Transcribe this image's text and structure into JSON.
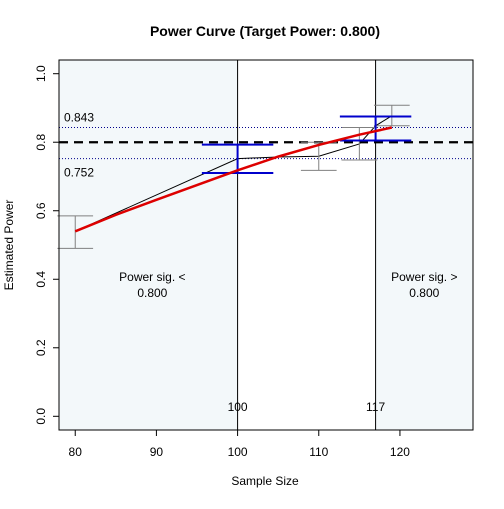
{
  "chart_data": {
    "type": "line",
    "title": "Power Curve (Target Power: 0.800)",
    "xlabel": "Sample Size",
    "ylabel": "Estimated Power",
    "xlim": [
      78,
      129
    ],
    "ylim": [
      -0.04,
      1.04
    ],
    "x_ticks": [
      80,
      90,
      100,
      110,
      120
    ],
    "x_tick_labels": [
      "80",
      "90",
      "100",
      "110",
      "120"
    ],
    "y_ticks": [
      0.0,
      0.2,
      0.4,
      0.6,
      0.8,
      1.0
    ],
    "y_tick_labels": [
      "0.0",
      "0.2",
      "0.4",
      "0.6",
      "0.8",
      "1.0"
    ],
    "grid": false,
    "target_power": 0.8,
    "band": {
      "upper": 0.843,
      "lower": 0.752,
      "upper_label": "0.843",
      "lower_label": "0.752"
    },
    "regions": [
      {
        "from": 78,
        "to": 100,
        "color": "#f3f8fa",
        "label_line1": "Power sig. <",
        "label_line2": "0.800",
        "label_x": 89.5,
        "label_y": 0.395
      },
      {
        "from": 100,
        "to": 117,
        "color": "#ffffff",
        "label_line1": "",
        "label_line2": "",
        "label_x": 108.5,
        "label_y": 0.395
      },
      {
        "from": 117,
        "to": 129,
        "color": "#f3f8fa",
        "label_line1": "Power sig. >",
        "label_line2": "0.800",
        "label_x": 123,
        "label_y": 0.395
      }
    ],
    "vlines": [
      {
        "x": 100,
        "label": "100"
      },
      {
        "x": 117,
        "label": "117"
      }
    ],
    "observed": {
      "x": [
        80,
        100,
        105,
        110,
        115,
        117,
        119
      ],
      "y": [
        0.54,
        0.752,
        0.757,
        0.759,
        0.795,
        0.848,
        0.877
      ]
    },
    "fit": {
      "x": [
        80,
        85,
        90,
        95,
        100,
        105,
        110,
        115,
        119
      ],
      "y": [
        0.54,
        0.588,
        0.632,
        0.675,
        0.718,
        0.758,
        0.792,
        0.822,
        0.843
      ]
    },
    "error_bars": [
      {
        "x": 80,
        "lo": 0.49,
        "hi": 0.585,
        "color": "#808080",
        "capwidth": 2.2
      },
      {
        "x": 110,
        "lo": 0.718,
        "hi": 0.8,
        "color": "#808080",
        "capwidth": 2.2
      },
      {
        "x": 115,
        "lo": 0.748,
        "hi": 0.843,
        "color": "#808080",
        "capwidth": 2.2
      },
      {
        "x": 119,
        "lo": 0.848,
        "hi": 0.908,
        "color": "#808080",
        "capwidth": 2.2
      },
      {
        "x": 100,
        "lo": 0.71,
        "hi": 0.793,
        "color": "#0000cc",
        "capwidth": 4.4
      },
      {
        "x": 117,
        "lo": 0.805,
        "hi": 0.875,
        "color": "#0000cc",
        "capwidth": 4.4
      }
    ],
    "colors": {
      "fit": "#dd0000",
      "observed": "#000000",
      "target": "#000000",
      "band": "#00008b",
      "axis": "#000000"
    }
  }
}
